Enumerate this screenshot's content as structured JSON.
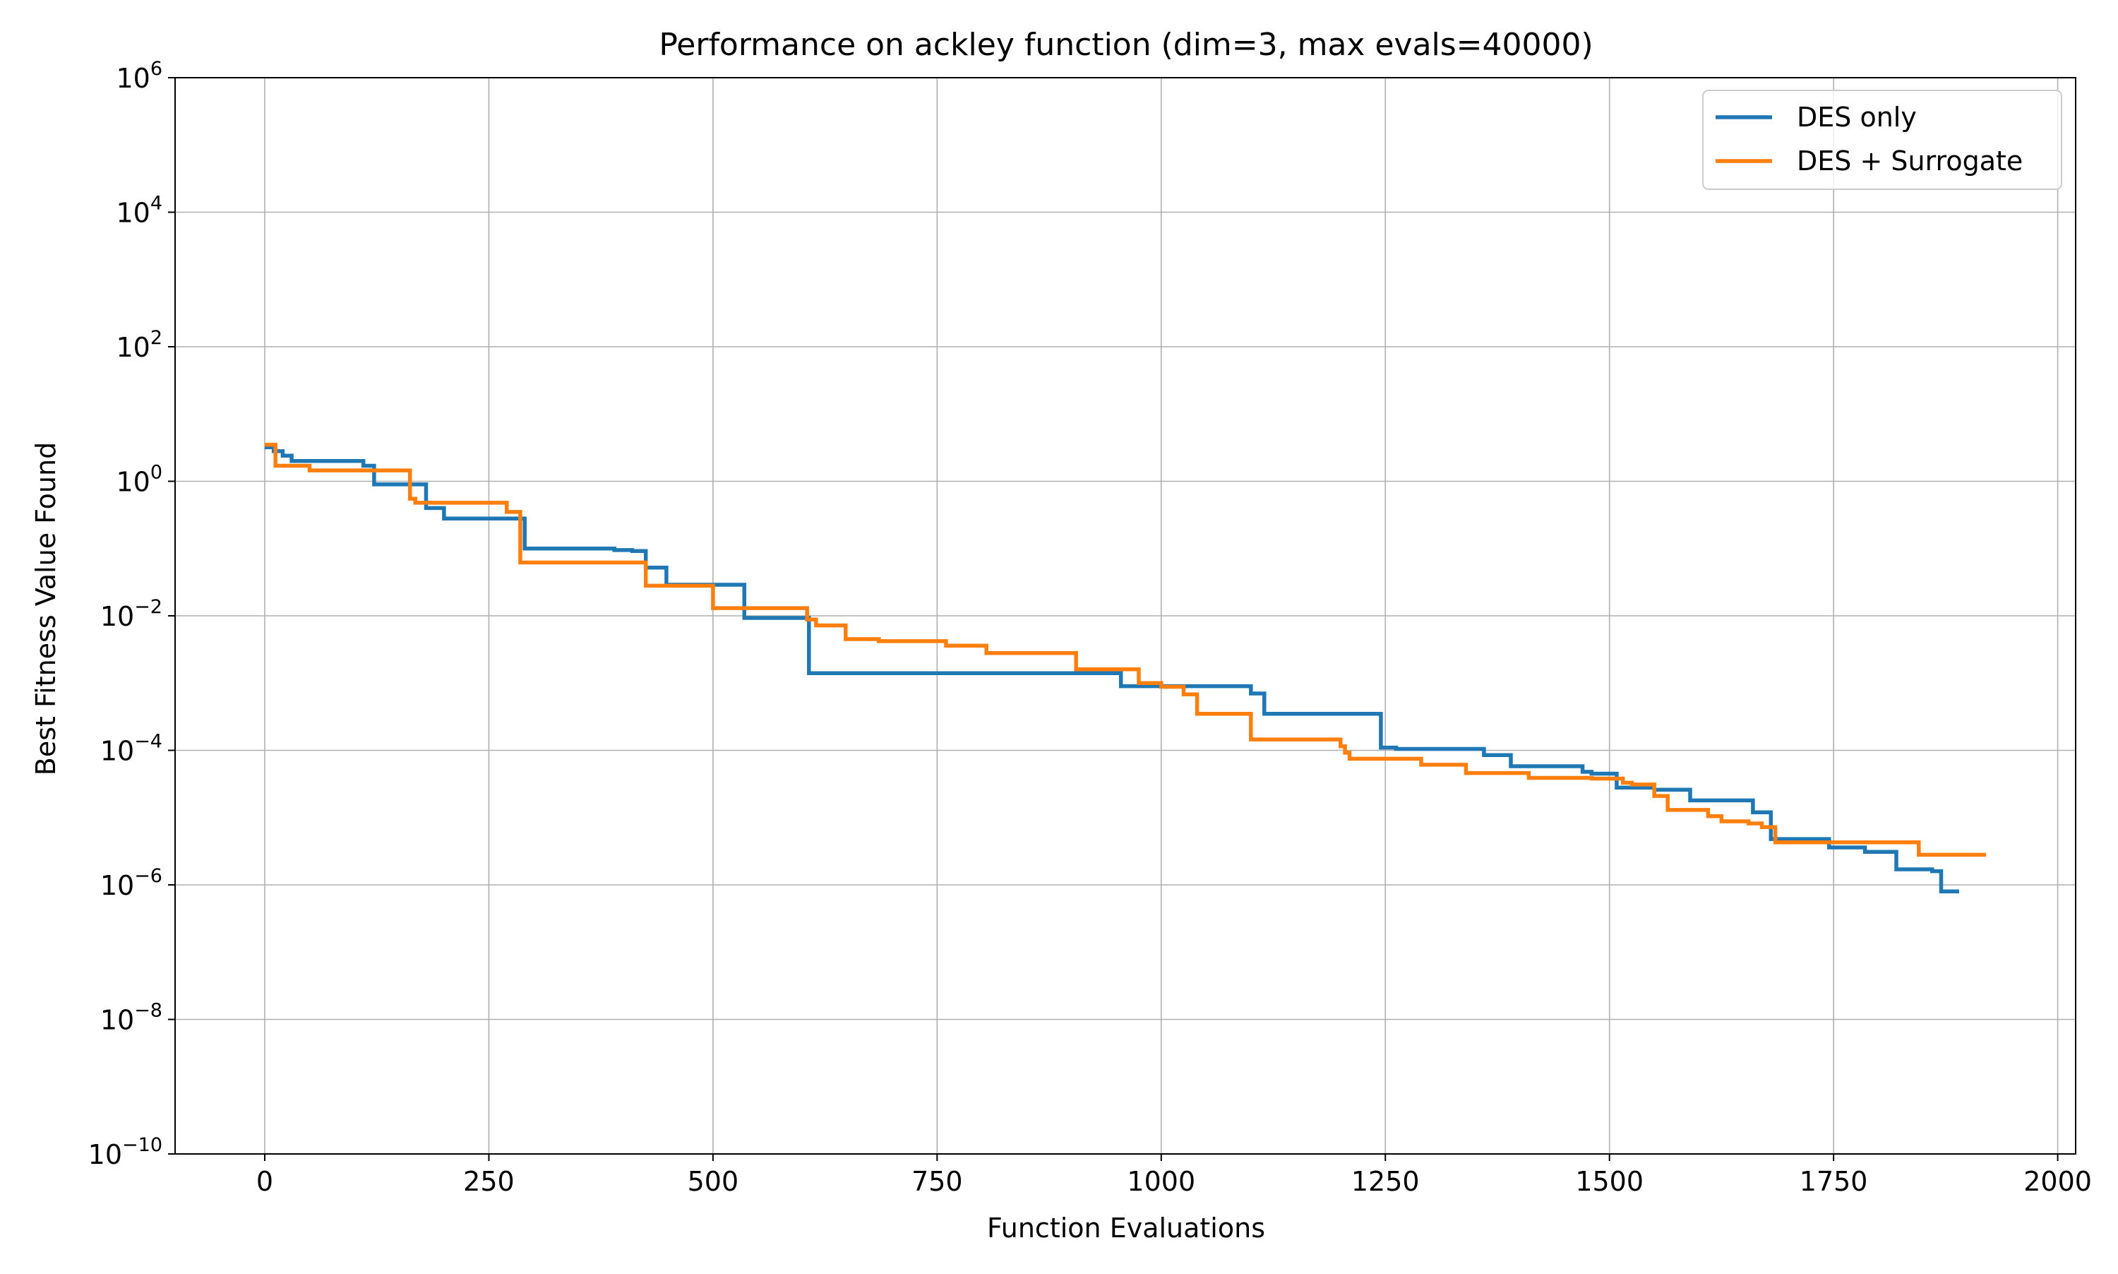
{
  "chart_data": {
    "type": "line",
    "title": "Performance on ackley function (dim=3, max evals=40000)",
    "xlabel": "Function Evaluations",
    "ylabel": "Best Fitness Value Found",
    "xlim": [
      -100,
      2020
    ],
    "ylim": [
      1e-10,
      1000000.0
    ],
    "yscale": "log",
    "x_ticks": [
      {
        "value": 0,
        "label": "0"
      },
      {
        "value": 250,
        "label": "250"
      },
      {
        "value": 500,
        "label": "500"
      },
      {
        "value": 750,
        "label": "750"
      },
      {
        "value": 1000,
        "label": "1000"
      },
      {
        "value": 1250,
        "label": "1250"
      },
      {
        "value": 1500,
        "label": "1500"
      },
      {
        "value": 1750,
        "label": "1750"
      },
      {
        "value": 2000,
        "label": "2000"
      }
    ],
    "y_ticks": [
      {
        "value": 1e-10,
        "base": "10",
        "exp": "−10"
      },
      {
        "value": 1e-08,
        "base": "10",
        "exp": "−8"
      },
      {
        "value": 1e-06,
        "base": "10",
        "exp": "−6"
      },
      {
        "value": 0.0001,
        "base": "10",
        "exp": "−4"
      },
      {
        "value": 0.01,
        "base": "10",
        "exp": "−2"
      },
      {
        "value": 1,
        "base": "10",
        "exp": "0"
      },
      {
        "value": 100,
        "base": "10",
        "exp": "2"
      },
      {
        "value": 10000,
        "base": "10",
        "exp": "4"
      },
      {
        "value": 1000000,
        "base": "10",
        "exp": "6"
      }
    ],
    "grid": true,
    "legend_position": "top-right",
    "series": [
      {
        "name": "DES only",
        "color": "#1f77b4",
        "step": "post",
        "x": [
          0,
          10,
          20,
          30,
          110,
          122,
          180,
          200,
          272,
          290,
          390,
          410,
          425,
          448,
          460,
          530,
          535,
          600,
          607,
          950,
          955,
          1000,
          1100,
          1115,
          1245,
          1250,
          1262,
          1360,
          1380,
          1390,
          1470,
          1480,
          1508,
          1520,
          1550,
          1590,
          1610,
          1660,
          1680,
          1695,
          1745,
          1785,
          1820,
          1860,
          1870,
          1890
        ],
        "y": [
          3.2,
          2.8,
          2.4,
          2.0,
          1.7,
          0.9,
          0.4,
          0.28,
          0.28,
          0.1,
          0.095,
          0.092,
          0.052,
          0.029,
          0.029,
          0.029,
          0.0093,
          0.0093,
          0.0014,
          0.0014,
          0.0009,
          0.0009,
          0.0007,
          0.00035,
          0.00011,
          0.00011,
          0.000105,
          8.5e-05,
          8.5e-05,
          5.8e-05,
          4.8e-05,
          4.5e-05,
          2.8e-05,
          2.8e-05,
          2.6e-05,
          1.8e-05,
          1.8e-05,
          1.2e-05,
          4.8e-06,
          4.8e-06,
          3.6e-06,
          3.1e-06,
          1.7e-06,
          1.6e-06,
          8e-07,
          8e-07
        ]
      },
      {
        "name": "DES + Surrogate",
        "color": "#ff7f0e",
        "step": "post",
        "x": [
          0,
          12,
          50,
          162,
          168,
          270,
          285,
          290,
          425,
          430,
          500,
          505,
          605,
          615,
          648,
          685,
          760,
          805,
          905,
          975,
          1000,
          1025,
          1040,
          1100,
          1200,
          1205,
          1210,
          1290,
          1340,
          1410,
          1480,
          1515,
          1525,
          1550,
          1565,
          1610,
          1625,
          1655,
          1670,
          1685,
          1840,
          1845,
          1920
        ],
        "y": [
          3.5,
          1.7,
          1.45,
          0.55,
          0.48,
          0.35,
          0.062,
          0.062,
          0.028,
          0.028,
          0.013,
          0.013,
          0.0088,
          0.0072,
          0.0045,
          0.0042,
          0.0036,
          0.0028,
          0.0016,
          0.001,
          0.00088,
          0.00068,
          0.00035,
          0.000145,
          0.000115,
          9.2e-05,
          7.5e-05,
          6.1e-05,
          4.6e-05,
          3.9e-05,
          3.8e-05,
          3.3e-05,
          3.1e-05,
          2.1e-05,
          1.3e-05,
          1.05e-05,
          8.8e-06,
          8.2e-06,
          7.2e-06,
          4.3e-06,
          4.3e-06,
          2.8e-06,
          2.8e-06
        ]
      }
    ]
  }
}
